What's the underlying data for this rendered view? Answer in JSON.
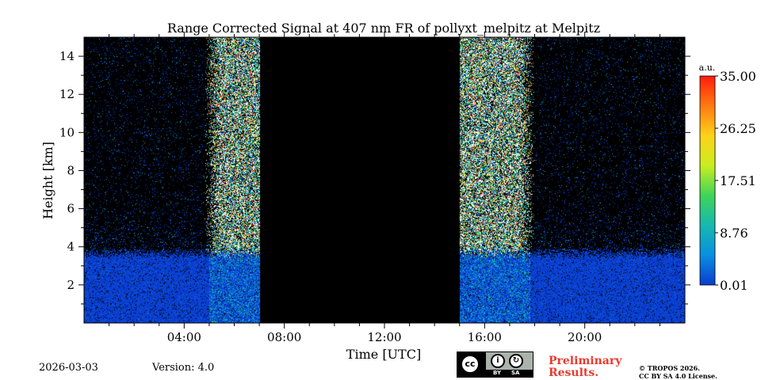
{
  "chart_data": {
    "type": "heatmap",
    "title": "Range Corrected Signal at 407 nm FR of pollyxt_melpitz at Melpitz",
    "xlabel": "Time [UTC]",
    "ylabel": "Height [km]",
    "x_range_hours": [
      0,
      24
    ],
    "y_range_km": [
      0,
      15
    ],
    "x_ticks": [
      {
        "value": 4,
        "label": "04:00"
      },
      {
        "value": 8,
        "label": "08:00"
      },
      {
        "value": 12,
        "label": "12:00"
      },
      {
        "value": 16,
        "label": "16:00"
      },
      {
        "value": 20,
        "label": "20:00"
      }
    ],
    "y_ticks": [
      {
        "value": 2,
        "label": "2"
      },
      {
        "value": 4,
        "label": "4"
      },
      {
        "value": 6,
        "label": "6"
      },
      {
        "value": 8,
        "label": "8"
      },
      {
        "value": 10,
        "label": "10"
      },
      {
        "value": 12,
        "label": "12"
      },
      {
        "value": 14,
        "label": "14"
      }
    ],
    "colorbar": {
      "unit": "a.u.",
      "range": [
        0.01,
        35.0
      ],
      "ticks": [
        {
          "value": 0.01,
          "label": "0.01"
        },
        {
          "value": 8.76,
          "label": "8.76"
        },
        {
          "value": 17.51,
          "label": "17.51"
        },
        {
          "value": 26.25,
          "label": "26.25"
        },
        {
          "value": 35.0,
          "label": "35.00"
        }
      ],
      "colors": [
        "#0a3ccf",
        "#0a8fe0",
        "#17b8b0",
        "#3fd45a",
        "#c8ee20",
        "#ffd21a",
        "#ff7a12",
        "#ff1d0d"
      ]
    },
    "no_data_interval_hours": [
      7.0,
      15.0
    ],
    "saturated_intervals_hours": [
      [
        5.4,
        7.0
      ],
      [
        15.0,
        17.4
      ]
    ],
    "boundary_layer_top_km": 3.4
  },
  "footer": {
    "date": "2026-03-03",
    "version": "Version: 4.0",
    "license_by": "BY",
    "license_sa": "SA",
    "license_cc": "cc",
    "preliminary_line1": "Preliminary",
    "preliminary_line2": "Results.",
    "copyright_line1": "© TROPOS 2026.",
    "copyright_line2": "CC BY SA 4.0 License."
  }
}
